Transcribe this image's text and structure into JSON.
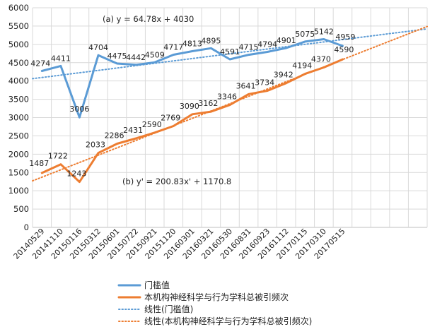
{
  "chart_data": {
    "type": "line",
    "categories": [
      "20140529",
      "20141110",
      "20150116",
      "20150312",
      "20150601",
      "20150722",
      "20150921",
      "20151120",
      "20160301",
      "20160321",
      "20160530",
      "20160831",
      "20160923",
      "20161112",
      "20170115",
      "20170310",
      "20170515"
    ],
    "ylim": [
      0,
      6000
    ],
    "yticks": [
      0,
      500,
      1000,
      1500,
      2000,
      2500,
      3000,
      3500,
      4000,
      4500,
      5000,
      5500,
      6000
    ],
    "grid": true,
    "legend_position": "bottom",
    "series": [
      {
        "name": "门槛值",
        "color": "#5B9BD5",
        "values": [
          4274,
          4411,
          3006,
          4704,
          4475,
          4442,
          4509,
          4717,
          4813,
          4895,
          4591,
          4715,
          4794,
          4901,
          5075,
          5142,
          4959
        ],
        "labels": [
          "4274",
          "4411",
          "3006",
          "4704",
          "4475",
          "4442",
          "4509",
          "4717",
          "4813",
          "4895",
          "4591",
          "4715",
          "4794",
          "4901",
          "5075",
          "5142",
          "4959"
        ]
      },
      {
        "name": "本机构神经科学与行为学科总被引频次",
        "color": "#ED7D31",
        "values": [
          1487,
          1722,
          1243,
          2033,
          2286,
          2431,
          2590,
          2769,
          3090,
          3162,
          3346,
          3641,
          3734,
          3942,
          4194,
          4370,
          4590
        ],
        "labels": [
          "1487",
          "1722",
          "1243",
          "2033",
          "2286",
          "2431",
          "2590",
          "2769",
          "3090",
          "3162",
          "3346",
          "3641",
          "3734",
          "3942",
          "4194",
          "4370",
          "4590"
        ]
      }
    ],
    "trendlines": [
      {
        "name": "线性(门槛值)",
        "color": "#5B9BD5",
        "slope": 64.78,
        "intercept": 4030,
        "equation": "(a)  y = 64.78x + 4030"
      },
      {
        "name": "线性(本机构神经科学与行为学科总被引频次)",
        "color": "#ED7D31",
        "slope": 200.83,
        "intercept": 1170.8,
        "equation": "(b)   y' = 200.83x' + 1170.8"
      }
    ]
  }
}
